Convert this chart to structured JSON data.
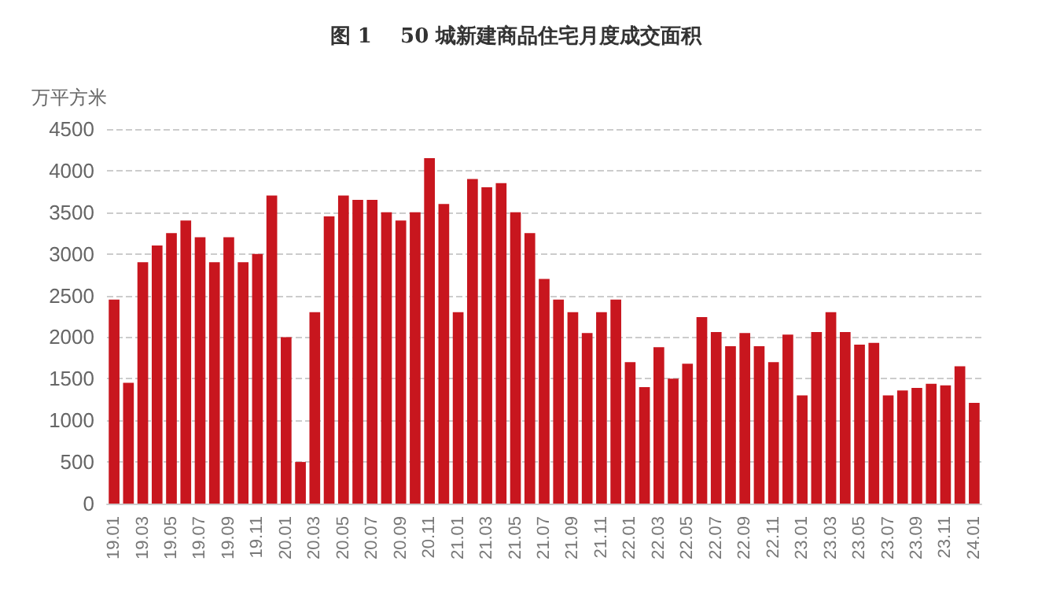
{
  "chart_data": {
    "type": "bar",
    "title": "图 1    50 城新建商品住宅月度成交面积",
    "ylabel": "万平方米",
    "categories": [
      "19.01",
      null,
      "19.03",
      null,
      "19.05",
      null,
      "19.07",
      null,
      "19.09",
      null,
      "19.11",
      null,
      "20.01",
      null,
      "20.03",
      null,
      "20.05",
      null,
      "20.07",
      null,
      "20.09",
      null,
      "20.11",
      null,
      "21.01",
      null,
      "21.03",
      null,
      "21.05",
      null,
      "21.07",
      null,
      "21.09",
      null,
      "21.11",
      null,
      "22.01",
      null,
      "22.03",
      null,
      "22.05",
      null,
      "22.07",
      null,
      "22.09",
      null,
      "22.11",
      null,
      "23.01",
      null,
      "23.03",
      null,
      "23.05",
      null,
      "23.07",
      null,
      "23.09",
      null,
      "23.11",
      null,
      "24.01"
    ],
    "values": [
      2450,
      1450,
      2900,
      3100,
      3250,
      3400,
      3200,
      2900,
      3200,
      2900,
      3000,
      3700,
      2000,
      500,
      2300,
      3450,
      3700,
      3650,
      3650,
      3500,
      3400,
      3500,
      4150,
      3600,
      2300,
      3900,
      3800,
      3850,
      3500,
      3250,
      2700,
      2450,
      2300,
      2050,
      2300,
      2450,
      1700,
      1400,
      1880,
      1500,
      1680,
      2240,
      2060,
      1890,
      2050,
      1890,
      1700,
      2030,
      1300,
      2060,
      2300,
      2060,
      1910,
      1930,
      1300,
      1360,
      1390,
      1440,
      1420,
      1650,
      1210
    ],
    "color": "#c8161e",
    "ylim": [
      0,
      4500
    ],
    "yticks": [
      0,
      500,
      1000,
      1500,
      2000,
      2500,
      3000,
      3500,
      4000,
      4500
    ],
    "grid": "y"
  }
}
